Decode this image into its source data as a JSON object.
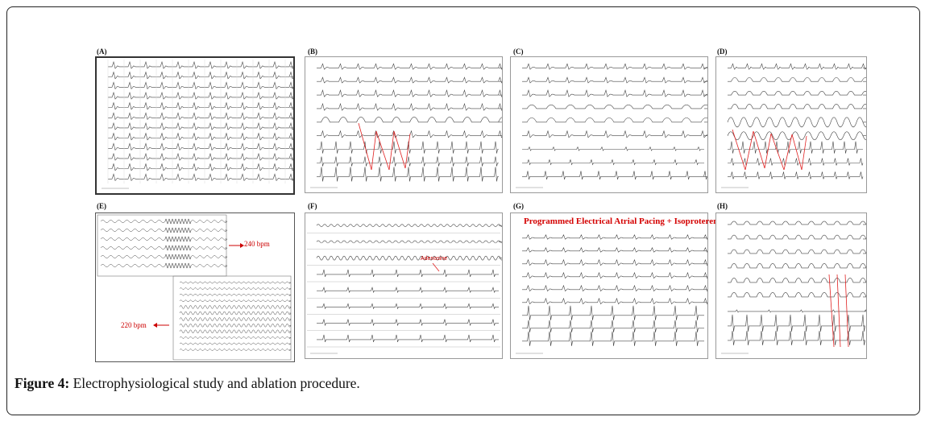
{
  "figure": {
    "caption_label": "Figure 4:",
    "caption_text": " Electrophysiological study and ablation procedure."
  },
  "panels": {
    "a": {
      "label": "(A)"
    },
    "b": {
      "label": "(B)"
    },
    "c": {
      "label": "(C)"
    },
    "d": {
      "label": "(D)"
    },
    "e": {
      "label": "(E)",
      "annotation_top": "240 bpm",
      "annotation_bottom": "220 bpm"
    },
    "f": {
      "label": "(F)",
      "annotation": "Adenosine"
    },
    "g": {
      "label": "(G)",
      "title": "Programmed Electrical Atrial Pacing + Isoproterenol"
    },
    "h": {
      "label": "(H)"
    }
  },
  "colors": {
    "annotation_red": "#cc0000",
    "trace": "#444444",
    "arrow_red": "#e02020"
  }
}
